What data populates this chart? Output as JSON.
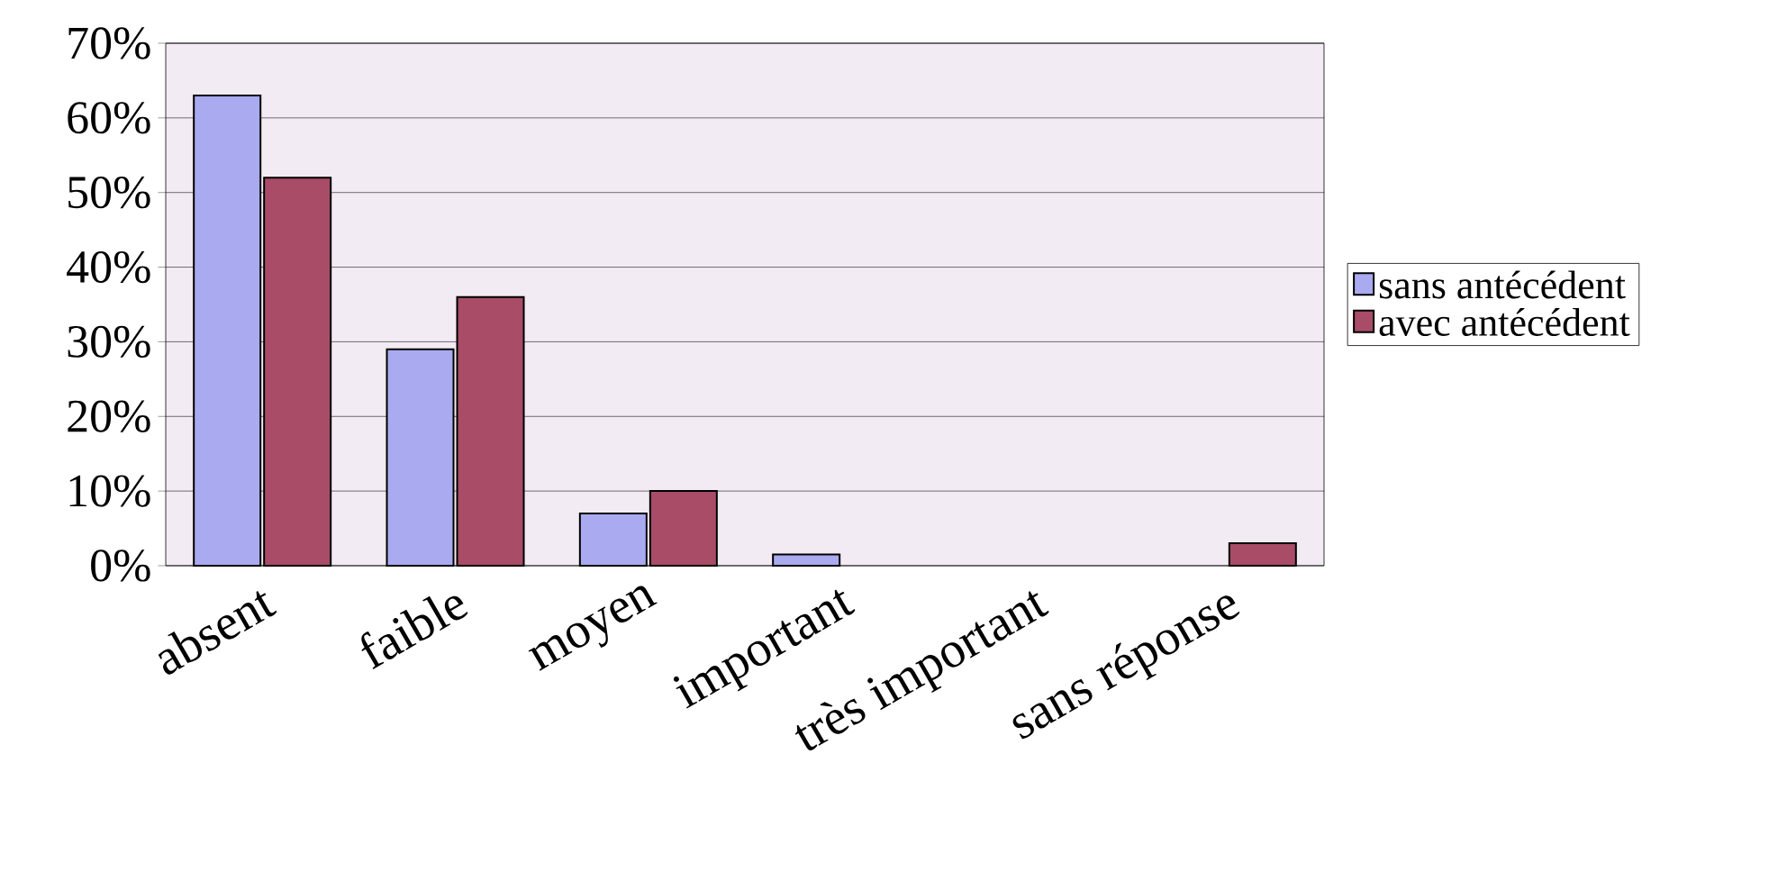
{
  "chart_data": {
    "type": "bar",
    "categories": [
      "absent",
      "faible",
      "moyen",
      "important",
      "très important",
      "sans réponse"
    ],
    "series": [
      {
        "name": "sans antécédent",
        "color": "#aaaaf0",
        "values": [
          63,
          29,
          7,
          1.5,
          null,
          null
        ]
      },
      {
        "name": "avec antécédent",
        "color": "#a84c68",
        "values": [
          52,
          36,
          10,
          null,
          null,
          3
        ]
      }
    ],
    "ylim": [
      0,
      70
    ],
    "yticks": [
      {
        "value": 0,
        "label": "0%"
      },
      {
        "value": 10,
        "label": "10%"
      },
      {
        "value": 20,
        "label": "20%"
      },
      {
        "value": 30,
        "label": "30%"
      },
      {
        "value": 40,
        "label": "40%"
      },
      {
        "value": 50,
        "label": "50%"
      },
      {
        "value": 60,
        "label": "60%"
      },
      {
        "value": 70,
        "label": "70%"
      }
    ],
    "grid": "y",
    "legend": "right"
  }
}
